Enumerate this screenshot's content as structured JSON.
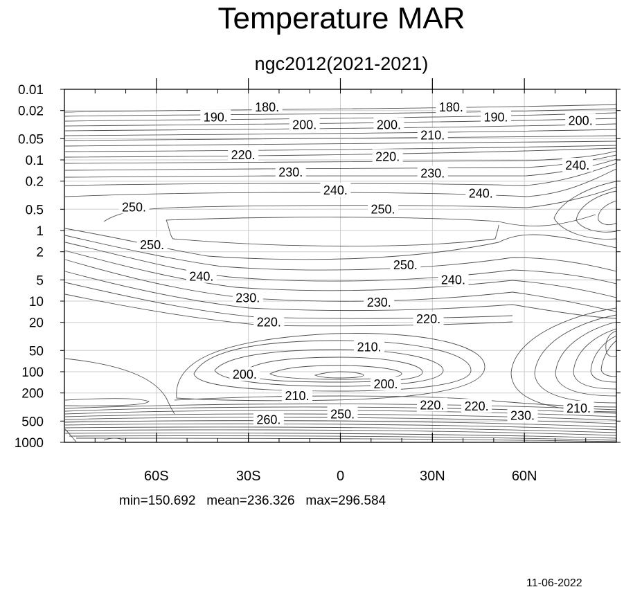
{
  "title": "Temperature MAR",
  "subtitle": "ngc2012(2021-2021)",
  "stats": {
    "min": "min=150.692",
    "mean": "mean=236.326",
    "max": "max=296.584"
  },
  "date": "11-06-2022",
  "chart_data": {
    "type": "contour",
    "variable": "Temperature",
    "month": "MAR",
    "x_axis": {
      "range": [
        -90,
        90
      ],
      "ticks": [
        {
          "value": -60,
          "label": "60S"
        },
        {
          "value": -30,
          "label": "30S"
        },
        {
          "value": 0,
          "label": "0"
        },
        {
          "value": 30,
          "label": "30N"
        },
        {
          "value": 60,
          "label": "60N"
        }
      ],
      "minor_step": 10
    },
    "y_axis": {
      "scale": "log",
      "inverted": true,
      "range": [
        1000,
        0.01
      ],
      "ticks": [
        0.01,
        0.02,
        0.05,
        0.1,
        0.2,
        0.5,
        1,
        2,
        5,
        10,
        20,
        50,
        100,
        200,
        500,
        1000
      ],
      "tick_labels": [
        "0.01",
        "0.02",
        "0.05",
        "0.1",
        "0.2",
        "0.5",
        "1",
        "2",
        "5",
        "10",
        "20",
        "50",
        "100",
        "200",
        "500",
        "1000"
      ]
    },
    "grid": true,
    "contour_interval": 5,
    "contour_line_color": "#505050",
    "grid_color": "#cccccc",
    "contour_labels": [
      {
        "text": "180.",
        "x": -23.9,
        "p": 0.018
      },
      {
        "text": "180.",
        "x": 36.1,
        "p": 0.018
      },
      {
        "text": "190.",
        "x": -40.7,
        "p": 0.025
      },
      {
        "text": "190.",
        "x": 50.7,
        "p": 0.025
      },
      {
        "text": "200.",
        "x": -11.7,
        "p": 0.032
      },
      {
        "text": "200.",
        "x": 15.8,
        "p": 0.032
      },
      {
        "text": "200.",
        "x": 78.3,
        "p": 0.028
      },
      {
        "text": "210.",
        "x": 30.1,
        "p": 0.045
      },
      {
        "text": "220.",
        "x": -31.7,
        "p": 0.085
      },
      {
        "text": "220.",
        "x": 15.4,
        "p": 0.09
      },
      {
        "text": "230.",
        "x": -16.2,
        "p": 0.15
      },
      {
        "text": "230.",
        "x": 30.1,
        "p": 0.155
      },
      {
        "text": "240.",
        "x": -1.6,
        "p": 0.27
      },
      {
        "text": "240.",
        "x": 45.8,
        "p": 0.3
      },
      {
        "text": "240.",
        "x": 77.3,
        "p": 0.12
      },
      {
        "text": "250.",
        "x": -67.3,
        "p": 0.47
      },
      {
        "text": "250.",
        "x": 13.9,
        "p": 0.5
      },
      {
        "text": "250.",
        "x": -61.4,
        "p": 1.6
      },
      {
        "text": "250.",
        "x": 21.2,
        "p": 3.1
      },
      {
        "text": "240.",
        "x": -45.3,
        "p": 4.5
      },
      {
        "text": "240.",
        "x": 36.8,
        "p": 5.0
      },
      {
        "text": "230.",
        "x": -30.2,
        "p": 9.0
      },
      {
        "text": "230.",
        "x": 12.6,
        "p": 10.5
      },
      {
        "text": "220.",
        "x": -23.3,
        "p": 20.0
      },
      {
        "text": "220.",
        "x": 28.7,
        "p": 18.0
      },
      {
        "text": "210.",
        "x": 9.4,
        "p": 45.0
      },
      {
        "text": "200.",
        "x": -31.2,
        "p": 110.0
      },
      {
        "text": "200.",
        "x": 14.8,
        "p": 150.0
      },
      {
        "text": "210.",
        "x": -14.1,
        "p": 220.0
      },
      {
        "text": "220.",
        "x": 29.9,
        "p": 300.0
      },
      {
        "text": "220.",
        "x": 44.4,
        "p": 310.0
      },
      {
        "text": "230.",
        "x": 59.4,
        "p": 420.0
      },
      {
        "text": "210.",
        "x": 77.7,
        "p": 330.0
      },
      {
        "text": "260.",
        "x": -23.4,
        "p": 480.0
      },
      {
        "text": "250.",
        "x": 0.7,
        "p": 400.0
      }
    ]
  }
}
